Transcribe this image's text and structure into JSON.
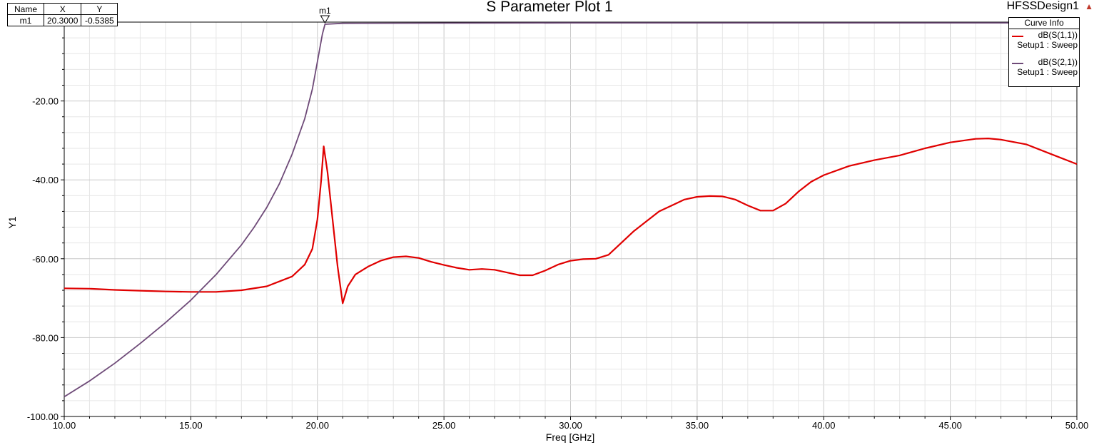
{
  "design_name": "HFSSDesign1",
  "marker_table": {
    "headers": [
      "Name",
      "X",
      "Y"
    ],
    "row": [
      "m1",
      "20.3000",
      "-0.5385"
    ]
  },
  "legend": {
    "title": "Curve Info",
    "entries": [
      {
        "name": "dB(S(1,1))",
        "setup": "Setup1 : Sweep",
        "color": "#e00000"
      },
      {
        "name": "dB(S(2,1))",
        "setup": "Setup1 : Sweep",
        "color": "#6e4a78"
      }
    ]
  },
  "chart_data": {
    "type": "line",
    "title": "S Parameter Plot 1",
    "xlabel": "Freq [GHz]",
    "ylabel": "Y1",
    "xlim": [
      10,
      50
    ],
    "ylim": [
      -100,
      0
    ],
    "xticks": [
      "10.00",
      "15.00",
      "20.00",
      "25.00",
      "30.00",
      "35.00",
      "40.00",
      "45.00",
      "50.00"
    ],
    "yticks": [
      "-20.00",
      "-40.00",
      "-60.00",
      "-80.00",
      "-100.00"
    ],
    "grid": true,
    "legend_position": "top-right",
    "marker": {
      "name": "m1",
      "x": 20.3,
      "y": -0.5385
    },
    "series": [
      {
        "name": "dB(S(1,1))",
        "color": "#e00000",
        "points": [
          [
            10,
            -67.5
          ],
          [
            11,
            -67.6
          ],
          [
            12,
            -67.9
          ],
          [
            13,
            -68.1
          ],
          [
            14,
            -68.3
          ],
          [
            15,
            -68.4
          ],
          [
            16,
            -68.4
          ],
          [
            17,
            -68.0
          ],
          [
            18,
            -67.0
          ],
          [
            19,
            -64.5
          ],
          [
            19.5,
            -61.5
          ],
          [
            19.8,
            -57.5
          ],
          [
            20.0,
            -50.0
          ],
          [
            20.15,
            -40.0
          ],
          [
            20.25,
            -31.5
          ],
          [
            20.4,
            -38.0
          ],
          [
            20.6,
            -50.0
          ],
          [
            20.8,
            -62.0
          ],
          [
            21.0,
            -71.3
          ],
          [
            21.2,
            -67.0
          ],
          [
            21.5,
            -64.0
          ],
          [
            22.0,
            -62.0
          ],
          [
            22.5,
            -60.5
          ],
          [
            23.0,
            -59.6
          ],
          [
            23.5,
            -59.4
          ],
          [
            24.0,
            -59.8
          ],
          [
            24.5,
            -60.8
          ],
          [
            25.0,
            -61.6
          ],
          [
            25.5,
            -62.3
          ],
          [
            26.0,
            -62.8
          ],
          [
            26.5,
            -62.6
          ],
          [
            27.0,
            -62.8
          ],
          [
            27.5,
            -63.5
          ],
          [
            28.0,
            -64.2
          ],
          [
            28.5,
            -64.2
          ],
          [
            29.0,
            -63.0
          ],
          [
            29.5,
            -61.5
          ],
          [
            30.0,
            -60.5
          ],
          [
            30.5,
            -60.1
          ],
          [
            31.0,
            -60.0
          ],
          [
            31.5,
            -59.0
          ],
          [
            32.0,
            -56.0
          ],
          [
            32.5,
            -53.0
          ],
          [
            33.0,
            -50.5
          ],
          [
            33.5,
            -48.0
          ],
          [
            34.0,
            -46.5
          ],
          [
            34.5,
            -45.0
          ],
          [
            35.0,
            -44.3
          ],
          [
            35.5,
            -44.1
          ],
          [
            36.0,
            -44.2
          ],
          [
            36.5,
            -45.0
          ],
          [
            37.0,
            -46.5
          ],
          [
            37.5,
            -47.8
          ],
          [
            38.0,
            -47.8
          ],
          [
            38.5,
            -46.0
          ],
          [
            39.0,
            -43.0
          ],
          [
            39.5,
            -40.5
          ],
          [
            40.0,
            -38.8
          ],
          [
            41.0,
            -36.5
          ],
          [
            42.0,
            -35.0
          ],
          [
            43.0,
            -33.8
          ],
          [
            44.0,
            -32.0
          ],
          [
            45.0,
            -30.5
          ],
          [
            46.0,
            -29.6
          ],
          [
            46.5,
            -29.5
          ],
          [
            47.0,
            -29.8
          ],
          [
            48.0,
            -31.0
          ],
          [
            49.0,
            -33.5
          ],
          [
            50.0,
            -36.0
          ]
        ]
      },
      {
        "name": "dB(S(2,1))",
        "color": "#6e4a78",
        "points": [
          [
            10,
            -95.0
          ],
          [
            11,
            -91.0
          ],
          [
            12,
            -86.5
          ],
          [
            13,
            -81.5
          ],
          [
            14,
            -76.2
          ],
          [
            15,
            -70.5
          ],
          [
            16,
            -64.0
          ],
          [
            17,
            -56.5
          ],
          [
            17.5,
            -52.0
          ],
          [
            18,
            -47.0
          ],
          [
            18.5,
            -41.0
          ],
          [
            19,
            -33.5
          ],
          [
            19.5,
            -24.5
          ],
          [
            19.8,
            -17.0
          ],
          [
            20.0,
            -10.0
          ],
          [
            20.1,
            -6.5
          ],
          [
            20.2,
            -3.0
          ],
          [
            20.3,
            -0.5385
          ],
          [
            21,
            -0.3
          ],
          [
            25,
            -0.25
          ],
          [
            30,
            -0.2
          ],
          [
            35,
            -0.2
          ],
          [
            40,
            -0.2
          ],
          [
            45,
            -0.2
          ],
          [
            50,
            -0.2
          ]
        ]
      }
    ]
  }
}
